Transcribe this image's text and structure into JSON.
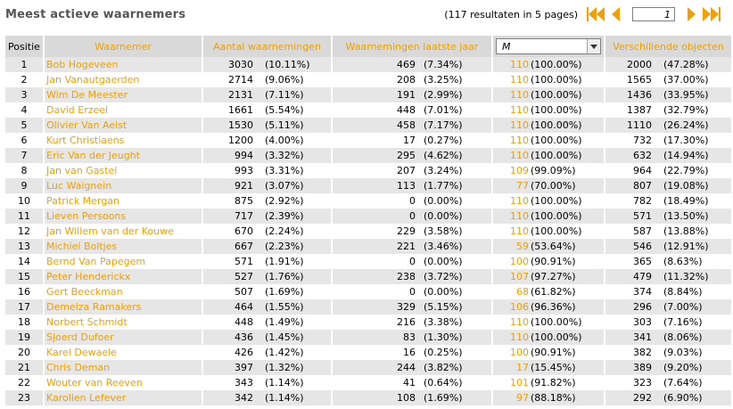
{
  "page": {
    "title": "Meest actieve waarnemers"
  },
  "pager": {
    "results_text": "(117 resultaten in 5 pages)",
    "current_page": "1"
  },
  "columns": {
    "positie": "Positie",
    "waarnemer": "Waarnemer",
    "aantal": "Aantal waarnemingen",
    "laatste_jaar": "Waarnemingen laatste jaar",
    "filter_value": "M",
    "objecten": "Verschillende objecten"
  },
  "colors": {
    "accent": "#f0a000",
    "header_bg": "#d9d9d9",
    "row_alt": "#e6e6e6"
  },
  "rows": [
    {
      "pos": "1",
      "name": "Bob Hogeveen",
      "aantal": "3030",
      "aantal_pct": "(10.11%)",
      "lj": "469",
      "lj_pct": "(7.34%)",
      "m": "110",
      "m_pct": "(100.00%)",
      "obj": "2000",
      "obj_pct": "(47.28%)"
    },
    {
      "pos": "2",
      "name": "Jan Vanautgaerden",
      "aantal": "2714",
      "aantal_pct": "(9.06%)",
      "lj": "208",
      "lj_pct": "(3.25%)",
      "m": "110",
      "m_pct": "(100.00%)",
      "obj": "1565",
      "obj_pct": "(37.00%)"
    },
    {
      "pos": "3",
      "name": "Wim De Meester",
      "aantal": "2131",
      "aantal_pct": "(7.11%)",
      "lj": "191",
      "lj_pct": "(2.99%)",
      "m": "110",
      "m_pct": "(100.00%)",
      "obj": "1436",
      "obj_pct": "(33.95%)"
    },
    {
      "pos": "4",
      "name": "David Erzeel",
      "aantal": "1661",
      "aantal_pct": "(5.54%)",
      "lj": "448",
      "lj_pct": "(7.01%)",
      "m": "110",
      "m_pct": "(100.00%)",
      "obj": "1387",
      "obj_pct": "(32.79%)"
    },
    {
      "pos": "5",
      "name": "Olivier Van Aelst",
      "aantal": "1530",
      "aantal_pct": "(5.11%)",
      "lj": "458",
      "lj_pct": "(7.17%)",
      "m": "110",
      "m_pct": "(100.00%)",
      "obj": "1110",
      "obj_pct": "(26.24%)"
    },
    {
      "pos": "6",
      "name": "Kurt Christiaens",
      "aantal": "1200",
      "aantal_pct": "(4.00%)",
      "lj": "17",
      "lj_pct": "(0.27%)",
      "m": "110",
      "m_pct": "(100.00%)",
      "obj": "732",
      "obj_pct": "(17.30%)"
    },
    {
      "pos": "7",
      "name": "Eric Van der Jeught",
      "aantal": "994",
      "aantal_pct": "(3.32%)",
      "lj": "295",
      "lj_pct": "(4.62%)",
      "m": "110",
      "m_pct": "(100.00%)",
      "obj": "632",
      "obj_pct": "(14.94%)"
    },
    {
      "pos": "8",
      "name": "Jan van Gastel",
      "aantal": "993",
      "aantal_pct": "(3.31%)",
      "lj": "207",
      "lj_pct": "(3.24%)",
      "m": "109",
      "m_pct": "(99.09%)",
      "obj": "964",
      "obj_pct": "(22.79%)"
    },
    {
      "pos": "9",
      "name": "Luc Waignein",
      "aantal": "921",
      "aantal_pct": "(3.07%)",
      "lj": "113",
      "lj_pct": "(1.77%)",
      "m": "77",
      "m_pct": "(70.00%)",
      "obj": "807",
      "obj_pct": "(19.08%)"
    },
    {
      "pos": "10",
      "name": "Patrick Mergan",
      "aantal": "875",
      "aantal_pct": "(2.92%)",
      "lj": "0",
      "lj_pct": "(0.00%)",
      "m": "110",
      "m_pct": "(100.00%)",
      "obj": "782",
      "obj_pct": "(18.49%)"
    },
    {
      "pos": "11",
      "name": "Lieven Persoons",
      "aantal": "717",
      "aantal_pct": "(2.39%)",
      "lj": "0",
      "lj_pct": "(0.00%)",
      "m": "110",
      "m_pct": "(100.00%)",
      "obj": "571",
      "obj_pct": "(13.50%)"
    },
    {
      "pos": "12",
      "name": "Jan Willem van der Kouwe",
      "aantal": "670",
      "aantal_pct": "(2.24%)",
      "lj": "229",
      "lj_pct": "(3.58%)",
      "m": "110",
      "m_pct": "(100.00%)",
      "obj": "587",
      "obj_pct": "(13.88%)"
    },
    {
      "pos": "13",
      "name": "Michiel Boltjes",
      "aantal": "667",
      "aantal_pct": "(2.23%)",
      "lj": "221",
      "lj_pct": "(3.46%)",
      "m": "59",
      "m_pct": "(53.64%)",
      "obj": "546",
      "obj_pct": "(12.91%)"
    },
    {
      "pos": "14",
      "name": "Bernd Van Papegem",
      "aantal": "571",
      "aantal_pct": "(1.91%)",
      "lj": "0",
      "lj_pct": "(0.00%)",
      "m": "100",
      "m_pct": "(90.91%)",
      "obj": "365",
      "obj_pct": "(8.63%)"
    },
    {
      "pos": "15",
      "name": "Peter Henderickx",
      "aantal": "527",
      "aantal_pct": "(1.76%)",
      "lj": "238",
      "lj_pct": "(3.72%)",
      "m": "107",
      "m_pct": "(97.27%)",
      "obj": "479",
      "obj_pct": "(11.32%)"
    },
    {
      "pos": "16",
      "name": "Gert Beeckman",
      "aantal": "507",
      "aantal_pct": "(1.69%)",
      "lj": "0",
      "lj_pct": "(0.00%)",
      "m": "68",
      "m_pct": "(61.82%)",
      "obj": "374",
      "obj_pct": "(8.84%)"
    },
    {
      "pos": "17",
      "name": "Demelza Ramakers",
      "aantal": "464",
      "aantal_pct": "(1.55%)",
      "lj": "329",
      "lj_pct": "(5.15%)",
      "m": "106",
      "m_pct": "(96.36%)",
      "obj": "296",
      "obj_pct": "(7.00%)"
    },
    {
      "pos": "18",
      "name": "Norbert Schmidt",
      "aantal": "448",
      "aantal_pct": "(1.49%)",
      "lj": "216",
      "lj_pct": "(3.38%)",
      "m": "110",
      "m_pct": "(100.00%)",
      "obj": "303",
      "obj_pct": "(7.16%)"
    },
    {
      "pos": "19",
      "name": "Sjoerd Dufoer",
      "aantal": "436",
      "aantal_pct": "(1.45%)",
      "lj": "83",
      "lj_pct": "(1.30%)",
      "m": "110",
      "m_pct": "(100.00%)",
      "obj": "341",
      "obj_pct": "(8.06%)"
    },
    {
      "pos": "20",
      "name": "Karel Dewaele",
      "aantal": "426",
      "aantal_pct": "(1.42%)",
      "lj": "16",
      "lj_pct": "(0.25%)",
      "m": "100",
      "m_pct": "(90.91%)",
      "obj": "382",
      "obj_pct": "(9.03%)"
    },
    {
      "pos": "21",
      "name": "Chris Deman",
      "aantal": "397",
      "aantal_pct": "(1.32%)",
      "lj": "244",
      "lj_pct": "(3.82%)",
      "m": "17",
      "m_pct": "(15.45%)",
      "obj": "389",
      "obj_pct": "(9.20%)"
    },
    {
      "pos": "22",
      "name": "Wouter van Reeven",
      "aantal": "343",
      "aantal_pct": "(1.14%)",
      "lj": "41",
      "lj_pct": "(0.64%)",
      "m": "101",
      "m_pct": "(91.82%)",
      "obj": "323",
      "obj_pct": "(7.64%)"
    },
    {
      "pos": "23",
      "name": "Karolien Lefever",
      "aantal": "342",
      "aantal_pct": "(1.14%)",
      "lj": "108",
      "lj_pct": "(1.69%)",
      "m": "97",
      "m_pct": "(88.18%)",
      "obj": "292",
      "obj_pct": "(6.90%)"
    }
  ]
}
